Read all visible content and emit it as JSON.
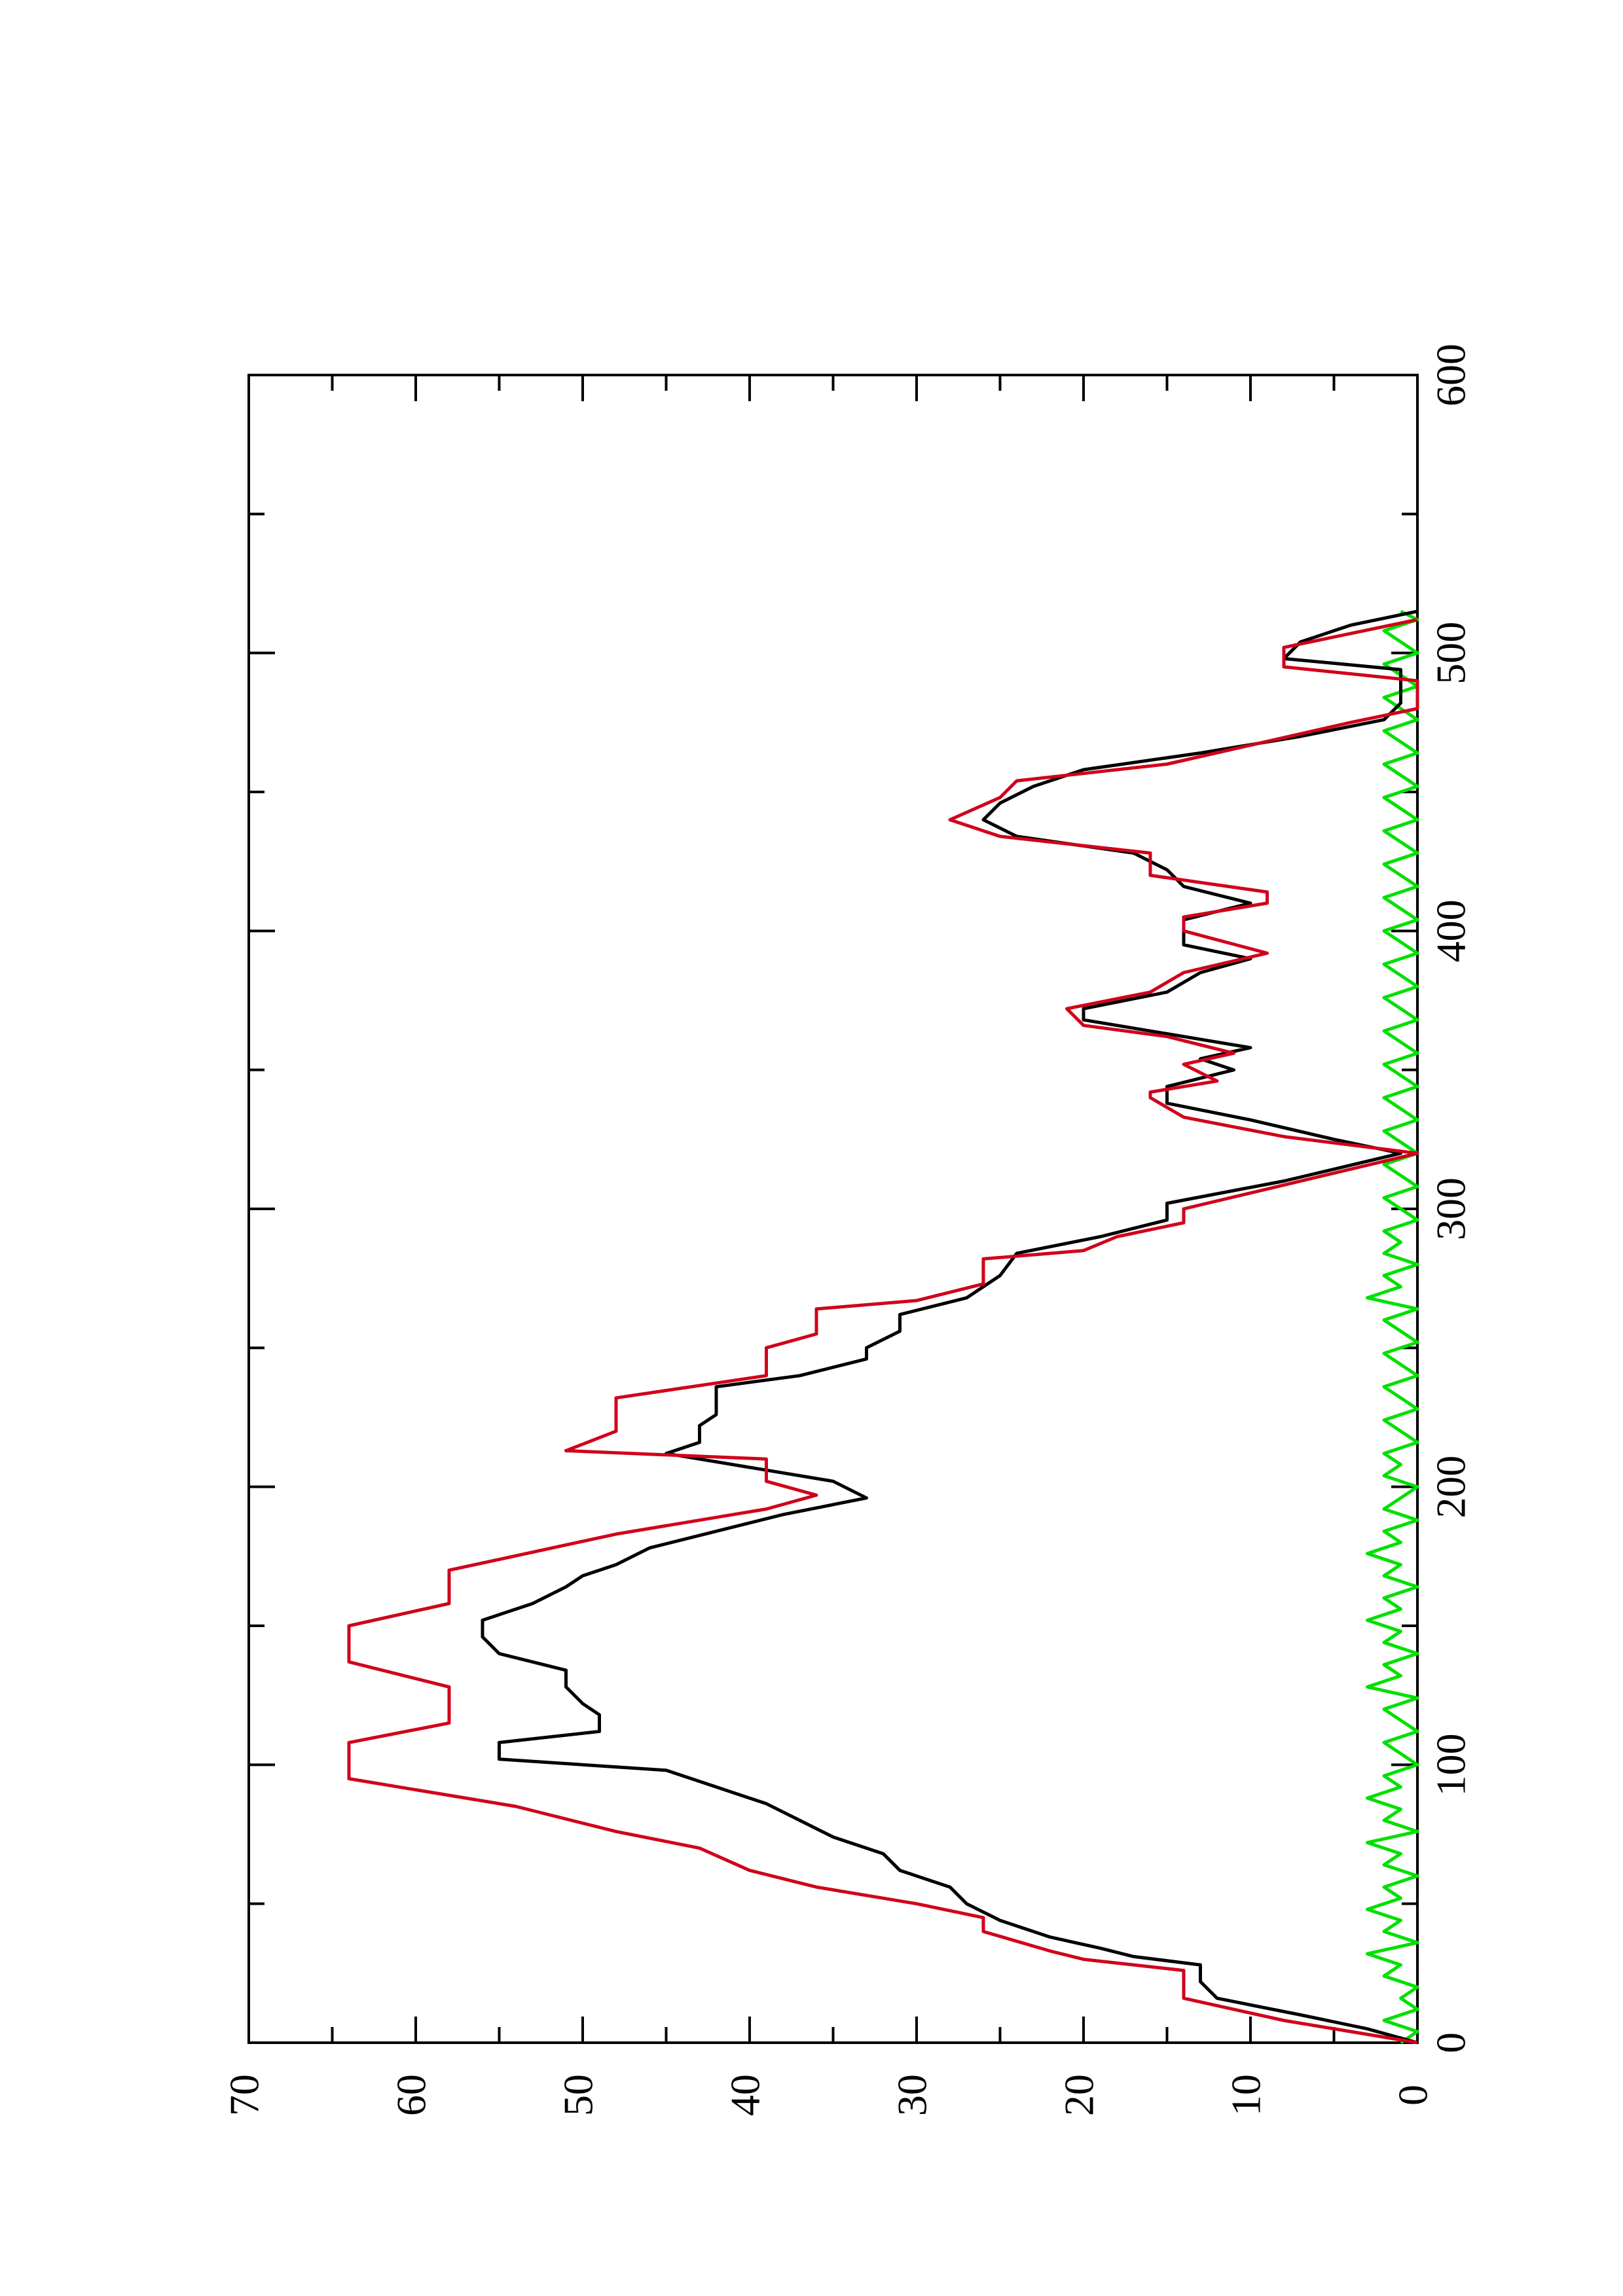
{
  "chart_data": {
    "type": "line",
    "orientation": "rotated 90 degrees counter-clockwise",
    "title": "",
    "xlabel": "",
    "ylabel": "",
    "xlim": [
      0,
      600
    ],
    "ylim": [
      0,
      70
    ],
    "x_ticks": [
      "0",
      "100",
      "200",
      "300",
      "400",
      "500",
      "600"
    ],
    "y_ticks": [
      "0",
      "10",
      "20",
      "30",
      "40",
      "50",
      "60",
      "70"
    ],
    "grid": false,
    "legend": "none",
    "series": [
      {
        "color": "#d0021b",
        "style": "step",
        "points": [
          [
            0,
            0
          ],
          [
            8,
            8
          ],
          [
            16,
            14
          ],
          [
            26,
            14
          ],
          [
            30,
            20
          ],
          [
            33,
            22
          ],
          [
            40,
            26
          ],
          [
            45,
            26
          ],
          [
            50,
            30
          ],
          [
            56,
            36
          ],
          [
            62,
            40
          ],
          [
            70,
            43
          ],
          [
            76,
            48
          ],
          [
            85,
            54
          ],
          [
            95,
            64
          ],
          [
            108,
            64
          ],
          [
            115,
            58
          ],
          [
            128,
            58
          ],
          [
            137,
            64
          ],
          [
            150,
            64
          ],
          [
            158,
            58
          ],
          [
            170,
            58
          ],
          [
            183,
            48
          ],
          [
            192,
            39
          ],
          [
            197,
            36
          ],
          [
            202,
            39
          ],
          [
            210,
            39
          ],
          [
            213,
            51
          ],
          [
            220,
            48
          ],
          [
            232,
            48
          ],
          [
            240,
            39
          ],
          [
            250,
            39
          ],
          [
            255,
            36
          ],
          [
            264,
            36
          ],
          [
            267,
            30
          ],
          [
            273,
            26
          ],
          [
            282,
            26
          ],
          [
            285,
            20
          ],
          [
            290,
            18
          ],
          [
            295,
            14
          ],
          [
            300,
            14
          ],
          [
            320,
            0
          ],
          [
            326,
            8
          ],
          [
            333,
            14
          ],
          [
            340,
            16
          ],
          [
            342,
            16
          ],
          [
            346,
            12
          ],
          [
            352,
            14
          ],
          [
            356,
            11
          ],
          [
            362,
            15
          ],
          [
            366,
            20
          ],
          [
            372,
            21
          ],
          [
            378,
            16
          ],
          [
            385,
            14
          ],
          [
            392,
            9
          ],
          [
            400,
            14
          ],
          [
            405,
            14
          ],
          [
            410,
            9
          ],
          [
            414,
            9
          ],
          [
            420,
            16
          ],
          [
            428,
            16
          ],
          [
            434,
            25
          ],
          [
            440,
            28
          ],
          [
            448,
            25
          ],
          [
            454,
            24
          ],
          [
            460,
            15
          ],
          [
            475,
            4
          ],
          [
            480,
            0
          ],
          [
            490,
            0
          ],
          [
            495,
            8
          ],
          [
            502,
            8
          ],
          [
            507,
            4
          ],
          [
            512,
            0
          ]
        ]
      },
      {
        "color": "#000000",
        "style": "line",
        "points": [
          [
            0,
            0
          ],
          [
            5,
            3
          ],
          [
            10,
            7
          ],
          [
            16,
            12
          ],
          [
            22,
            13
          ],
          [
            28,
            13
          ],
          [
            31,
            17
          ],
          [
            34,
            19
          ],
          [
            38,
            22
          ],
          [
            44,
            25
          ],
          [
            50,
            27
          ],
          [
            56,
            28
          ],
          [
            62,
            31
          ],
          [
            68,
            32
          ],
          [
            74,
            35
          ],
          [
            80,
            37
          ],
          [
            86,
            39
          ],
          [
            92,
            42
          ],
          [
            98,
            45
          ],
          [
            102,
            55
          ],
          [
            108,
            55
          ],
          [
            112,
            49
          ],
          [
            118,
            49
          ],
          [
            122,
            50
          ],
          [
            128,
            51
          ],
          [
            134,
            51
          ],
          [
            140,
            55
          ],
          [
            146,
            56
          ],
          [
            152,
            56
          ],
          [
            158,
            53
          ],
          [
            164,
            51
          ],
          [
            168,
            50
          ],
          [
            172,
            48
          ],
          [
            178,
            46
          ],
          [
            184,
            42
          ],
          [
            190,
            38
          ],
          [
            196,
            33
          ],
          [
            202,
            35
          ],
          [
            206,
            39
          ],
          [
            212,
            45
          ],
          [
            216,
            43
          ],
          [
            222,
            43
          ],
          [
            226,
            42
          ],
          [
            232,
            42
          ],
          [
            236,
            42
          ],
          [
            240,
            37
          ],
          [
            246,
            33
          ],
          [
            250,
            33
          ],
          [
            256,
            31
          ],
          [
            262,
            31
          ],
          [
            268,
            27
          ],
          [
            276,
            25
          ],
          [
            284,
            24
          ],
          [
            290,
            19
          ],
          [
            296,
            15
          ],
          [
            302,
            15
          ],
          [
            310,
            8
          ],
          [
            320,
            1
          ],
          [
            325,
            5
          ],
          [
            332,
            10
          ],
          [
            338,
            15
          ],
          [
            344,
            15
          ],
          [
            350,
            11
          ],
          [
            354,
            13
          ],
          [
            358,
            10
          ],
          [
            362,
            14
          ],
          [
            368,
            20
          ],
          [
            372,
            20
          ],
          [
            378,
            15
          ],
          [
            385,
            13
          ],
          [
            390,
            10
          ],
          [
            395,
            14
          ],
          [
            400,
            14
          ],
          [
            404,
            14
          ],
          [
            410,
            10
          ],
          [
            416,
            14
          ],
          [
            422,
            15
          ],
          [
            428,
            17
          ],
          [
            434,
            24
          ],
          [
            440,
            26
          ],
          [
            446,
            25
          ],
          [
            452,
            23
          ],
          [
            458,
            20
          ],
          [
            464,
            13
          ],
          [
            470,
            7
          ],
          [
            476,
            2
          ],
          [
            482,
            1
          ],
          [
            488,
            1
          ],
          [
            494,
            1
          ],
          [
            498,
            8
          ],
          [
            504,
            7
          ],
          [
            510,
            4
          ],
          [
            515,
            0
          ]
        ]
      },
      {
        "color": "#00e000",
        "style": "line",
        "points": [
          [
            0,
            1
          ],
          [
            4,
            0
          ],
          [
            8,
            2
          ],
          [
            12,
            0
          ],
          [
            16,
            1
          ],
          [
            20,
            0
          ],
          [
            24,
            2
          ],
          [
            28,
            1
          ],
          [
            32,
            3
          ],
          [
            36,
            0
          ],
          [
            40,
            2
          ],
          [
            44,
            1
          ],
          [
            48,
            3
          ],
          [
            52,
            1
          ],
          [
            56,
            2
          ],
          [
            60,
            0
          ],
          [
            64,
            2
          ],
          [
            68,
            1
          ],
          [
            72,
            3
          ],
          [
            76,
            0
          ],
          [
            80,
            2
          ],
          [
            84,
            1
          ],
          [
            88,
            3
          ],
          [
            92,
            1
          ],
          [
            96,
            2
          ],
          [
            100,
            0
          ],
          [
            104,
            1
          ],
          [
            108,
            2
          ],
          [
            112,
            0
          ],
          [
            116,
            1
          ],
          [
            120,
            2
          ],
          [
            124,
            0
          ],
          [
            128,
            3
          ],
          [
            132,
            1
          ],
          [
            136,
            2
          ],
          [
            140,
            0
          ],
          [
            144,
            2
          ],
          [
            148,
            1
          ],
          [
            152,
            3
          ],
          [
            156,
            1
          ],
          [
            160,
            2
          ],
          [
            164,
            0
          ],
          [
            168,
            2
          ],
          [
            172,
            1
          ],
          [
            176,
            3
          ],
          [
            180,
            1
          ],
          [
            184,
            2
          ],
          [
            188,
            0
          ],
          [
            192,
            2
          ],
          [
            196,
            1
          ],
          [
            200,
            0
          ],
          [
            204,
            2
          ],
          [
            208,
            1
          ],
          [
            212,
            2
          ],
          [
            216,
            0
          ],
          [
            220,
            1
          ],
          [
            224,
            2
          ],
          [
            228,
            0
          ],
          [
            232,
            1
          ],
          [
            236,
            2
          ],
          [
            240,
            0
          ],
          [
            244,
            1
          ],
          [
            248,
            2
          ],
          [
            252,
            0
          ],
          [
            256,
            1
          ],
          [
            260,
            2
          ],
          [
            264,
            0
          ],
          [
            268,
            3
          ],
          [
            272,
            1
          ],
          [
            276,
            2
          ],
          [
            280,
            0
          ],
          [
            284,
            2
          ],
          [
            288,
            1
          ],
          [
            292,
            2
          ],
          [
            296,
            0
          ],
          [
            300,
            1
          ],
          [
            304,
            2
          ],
          [
            308,
            0
          ],
          [
            312,
            1
          ],
          [
            316,
            2
          ],
          [
            320,
            0
          ],
          [
            324,
            1
          ],
          [
            328,
            2
          ],
          [
            332,
            0
          ],
          [
            336,
            1
          ],
          [
            340,
            2
          ],
          [
            344,
            0
          ],
          [
            348,
            1
          ],
          [
            352,
            2
          ],
          [
            356,
            0
          ],
          [
            360,
            1
          ],
          [
            364,
            2
          ],
          [
            368,
            0
          ],
          [
            372,
            1
          ],
          [
            376,
            2
          ],
          [
            380,
            0
          ],
          [
            384,
            1
          ],
          [
            388,
            2
          ],
          [
            392,
            0
          ],
          [
            396,
            1
          ],
          [
            400,
            2
          ],
          [
            404,
            0
          ],
          [
            408,
            1
          ],
          [
            412,
            2
          ],
          [
            416,
            0
          ],
          [
            420,
            1
          ],
          [
            424,
            2
          ],
          [
            428,
            0
          ],
          [
            432,
            1
          ],
          [
            436,
            2
          ],
          [
            440,
            0
          ],
          [
            444,
            1
          ],
          [
            448,
            2
          ],
          [
            452,
            0
          ],
          [
            456,
            1
          ],
          [
            460,
            2
          ],
          [
            464,
            0
          ],
          [
            468,
            1
          ],
          [
            472,
            2
          ],
          [
            476,
            0
          ],
          [
            480,
            1
          ],
          [
            484,
            2
          ],
          [
            488,
            0
          ],
          [
            492,
            1
          ],
          [
            496,
            2
          ],
          [
            500,
            0
          ],
          [
            504,
            1
          ],
          [
            508,
            2
          ],
          [
            512,
            0
          ],
          [
            515,
            1
          ]
        ]
      }
    ]
  }
}
